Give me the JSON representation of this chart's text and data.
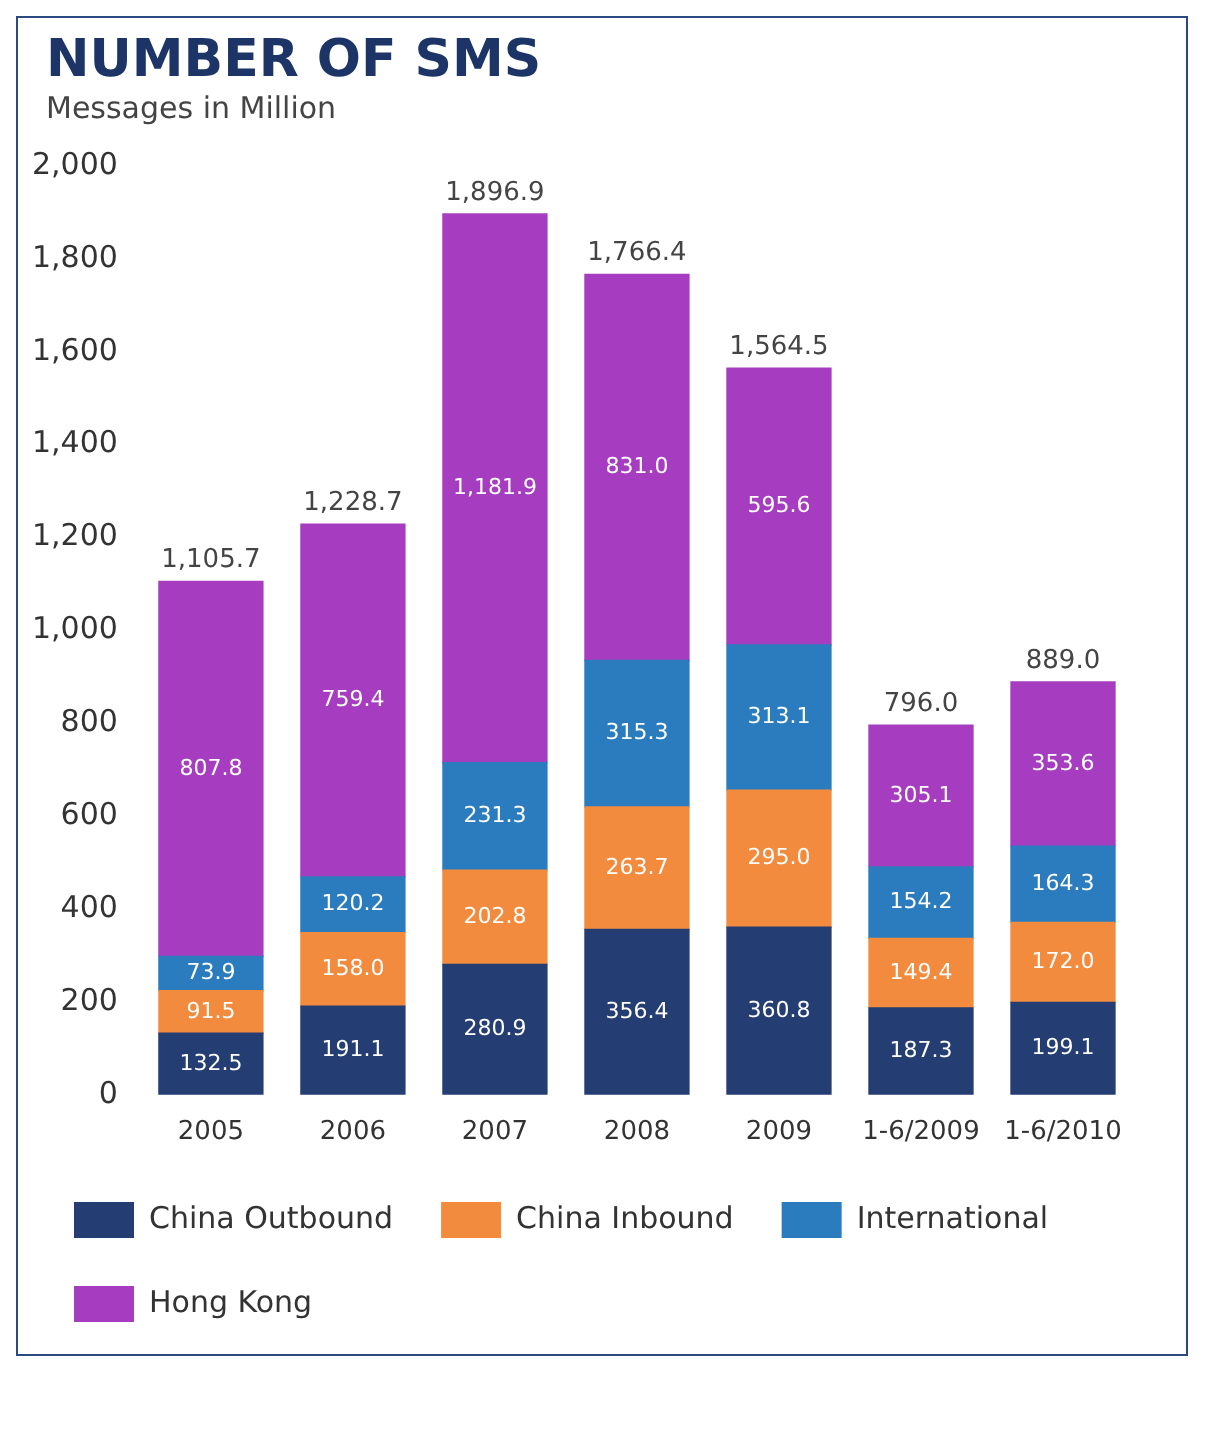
{
  "chart_data": {
    "type": "bar",
    "title": "NUMBER OF SMS",
    "subtitle": "Messages in Million",
    "stacked": true,
    "categories": [
      "2005",
      "2006",
      "2007",
      "2008",
      "2009",
      "1-6/2009",
      "1-6/2010"
    ],
    "series": [
      {
        "name": "China Outbound",
        "color": "#243d73",
        "values": [
          132.5,
          191.1,
          280.9,
          356.4,
          360.8,
          187.3,
          199.1
        ],
        "value_labels": [
          "132.5",
          "191.1",
          "280.9",
          "356.4",
          "360.8",
          "187.3",
          "199.1"
        ]
      },
      {
        "name": "China Inbound",
        "color": "#f28b3d",
        "values": [
          91.5,
          158.0,
          202.8,
          263.7,
          295.0,
          149.4,
          172.0
        ],
        "value_labels": [
          "91.5",
          "158.0",
          "202.8",
          "263.7",
          "295.0",
          "149.4",
          "172.0"
        ]
      },
      {
        "name": "International",
        "color": "#2b7cbf",
        "values": [
          73.9,
          120.2,
          231.3,
          315.3,
          313.1,
          154.2,
          164.3
        ],
        "value_labels": [
          "73.9",
          "120.2",
          "231.3",
          "315.3",
          "313.1",
          "154.2",
          "164.3"
        ]
      },
      {
        "name": "Hong Kong",
        "color": "#a63cc0",
        "values": [
          807.8,
          759.4,
          1181.9,
          831.0,
          595.6,
          305.1,
          353.6
        ],
        "value_labels": [
          "807.8",
          "759.4",
          "1,181.9",
          "831.0",
          "595.6",
          "305.1",
          "353.6"
        ]
      }
    ],
    "totals": [
      "1,105.7",
      "1,228.7",
      "1,896.9",
      "1,766.4",
      "1,564.5",
      "796.0",
      "889.0"
    ],
    "ylim": [
      0,
      2000
    ],
    "yticks": [
      0,
      200,
      400,
      600,
      800,
      {
        "value": 1000,
        "label": "1,000"
      },
      {
        "value": 1200,
        "label": "1,200"
      },
      {
        "value": 1400,
        "label": "1,400"
      },
      {
        "value": 1600,
        "label": "1,600"
      },
      {
        "value": 1800,
        "label": "1,800"
      },
      {
        "value": 2000,
        "label": "2,000"
      }
    ],
    "grid": false,
    "legend": "bottom"
  }
}
